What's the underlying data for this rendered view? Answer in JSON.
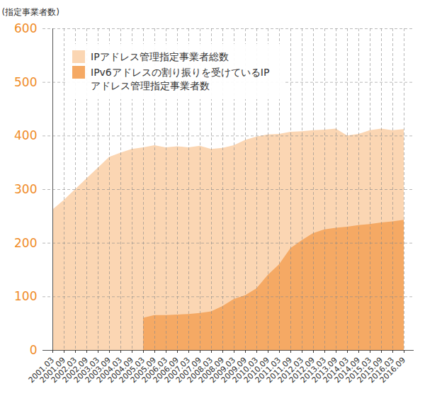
{
  "chart_data": {
    "type": "area",
    "y_label": "(指定事業者数)",
    "x": [
      "2001.03",
      "2001.09",
      "2002.03",
      "2002.09",
      "2003.03",
      "2003.09",
      "2004.03",
      "2004.09",
      "2005.03",
      "2005.09",
      "2006.03",
      "2006.09",
      "2007.03",
      "2007.09",
      "2008.03",
      "2008.09",
      "2009.03",
      "2009.09",
      "2010.03",
      "2010.09",
      "2011.03",
      "2011.09",
      "2012.03",
      "2012.09",
      "2013.03",
      "2013.09",
      "2014.03",
      "2014.09",
      "2015.03",
      "2015.09",
      "2016.03",
      "2016.09"
    ],
    "series": [
      {
        "name": "IPアドレス管理指定事業者総数",
        "color": "#fbd6b3",
        "values": [
          262,
          280,
          300,
          320,
          340,
          360,
          368,
          375,
          378,
          382,
          378,
          380,
          378,
          381,
          375,
          377,
          382,
          392,
          398,
          402,
          403,
          407,
          408,
          410,
          411,
          413,
          400,
          403,
          410,
          413,
          410,
          412
        ]
      },
      {
        "name": "IPv6アドレスの割り振りを受けているIPアドレス管理指定事業者数",
        "color": "#f5a964",
        "values": [
          null,
          null,
          null,
          null,
          null,
          null,
          null,
          null,
          60,
          65,
          65,
          66,
          67,
          69,
          72,
          82,
          95,
          102,
          115,
          140,
          160,
          190,
          205,
          218,
          225,
          228,
          230,
          233,
          235,
          238,
          240,
          243
        ]
      }
    ],
    "ylim": [
      0,
      600
    ],
    "yticks": [
      0,
      100,
      200,
      300,
      400,
      500,
      600
    ],
    "grid": true,
    "legend": "top-left"
  }
}
